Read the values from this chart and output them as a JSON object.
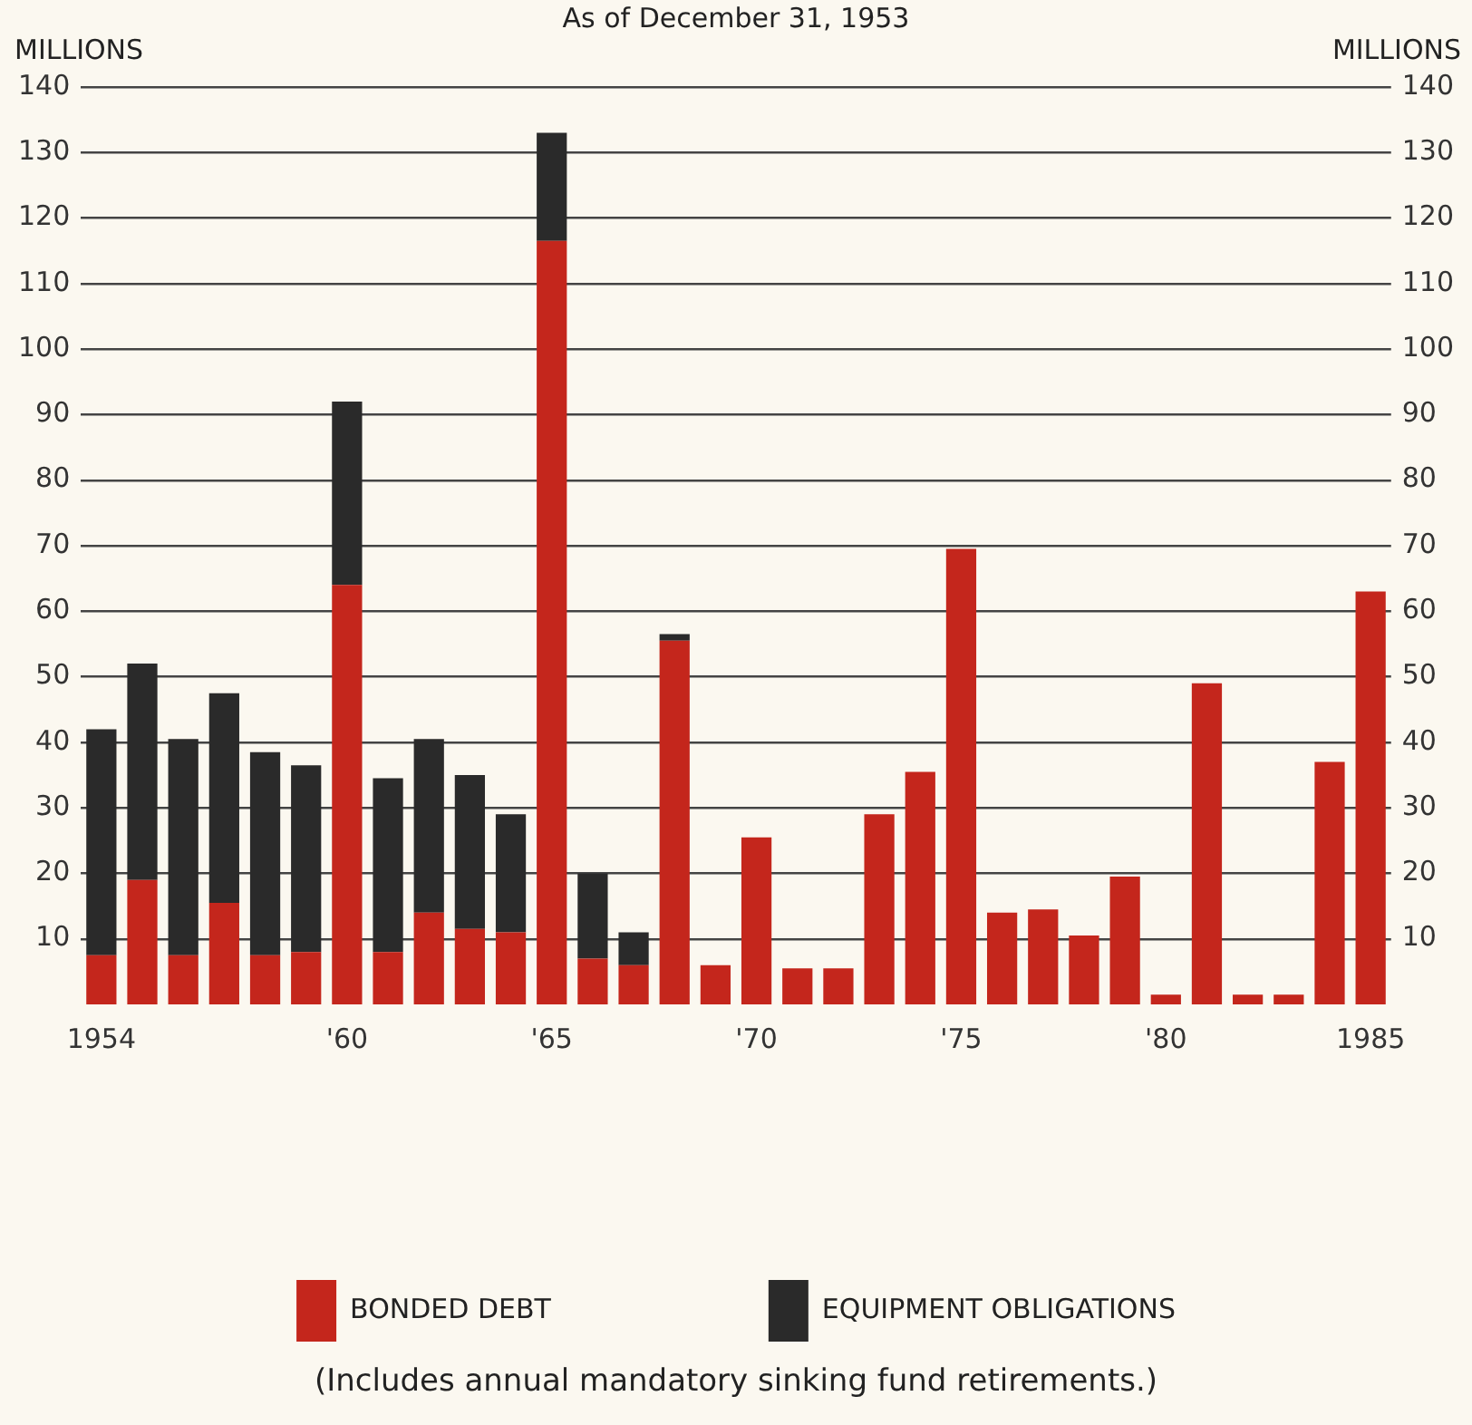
{
  "chart_data": {
    "type": "bar",
    "subtitle": "As of December 31, 1953",
    "ylabel": "MILLIONS",
    "y2label": "MILLIONS",
    "categories": [
      "1954",
      null,
      null,
      null,
      null,
      null,
      "'60",
      null,
      null,
      null,
      null,
      "'65",
      null,
      null,
      null,
      null,
      "'70",
      null,
      null,
      null,
      null,
      "'75",
      null,
      null,
      null,
      null,
      "'80",
      null,
      null,
      null,
      null,
      "1985"
    ],
    "series": [
      {
        "name": "BONDED DEBT",
        "color": "#c4261c",
        "values": [
          7.5,
          19,
          7.5,
          15.5,
          7.5,
          8,
          64,
          8,
          14,
          11.5,
          11,
          116.5,
          7,
          6,
          55.5,
          6,
          25.5,
          5.5,
          5.5,
          29,
          35.5,
          69.5,
          14,
          14.5,
          10.5,
          19.5,
          1.5,
          49,
          1.5,
          1.5,
          37,
          63
        ]
      },
      {
        "name": "EQUIPMENT OBLIGATIONS",
        "color": "#2a2a2a",
        "values": [
          34.5,
          33,
          33,
          32,
          31,
          28.5,
          28,
          26.5,
          26.5,
          23.5,
          18,
          16.5,
          13,
          5,
          1,
          null,
          null,
          null,
          null,
          null,
          null,
          null,
          null,
          null,
          null,
          null,
          null,
          null,
          null,
          null,
          null,
          null
        ]
      }
    ],
    "stacked": true,
    "ylim": [
      0,
      140
    ],
    "yticks": [
      10,
      20,
      30,
      40,
      50,
      60,
      70,
      80,
      90,
      100,
      110,
      120,
      130,
      140
    ],
    "y2lim": [
      0,
      140
    ],
    "y2ticks": [
      10,
      20,
      30,
      40,
      50,
      60,
      70,
      80,
      90,
      100,
      110,
      120,
      130,
      140
    ],
    "grid": "y",
    "legend": "bottom",
    "annotations": [
      "(Includes annual mandatory sinking fund retirements.)"
    ]
  }
}
